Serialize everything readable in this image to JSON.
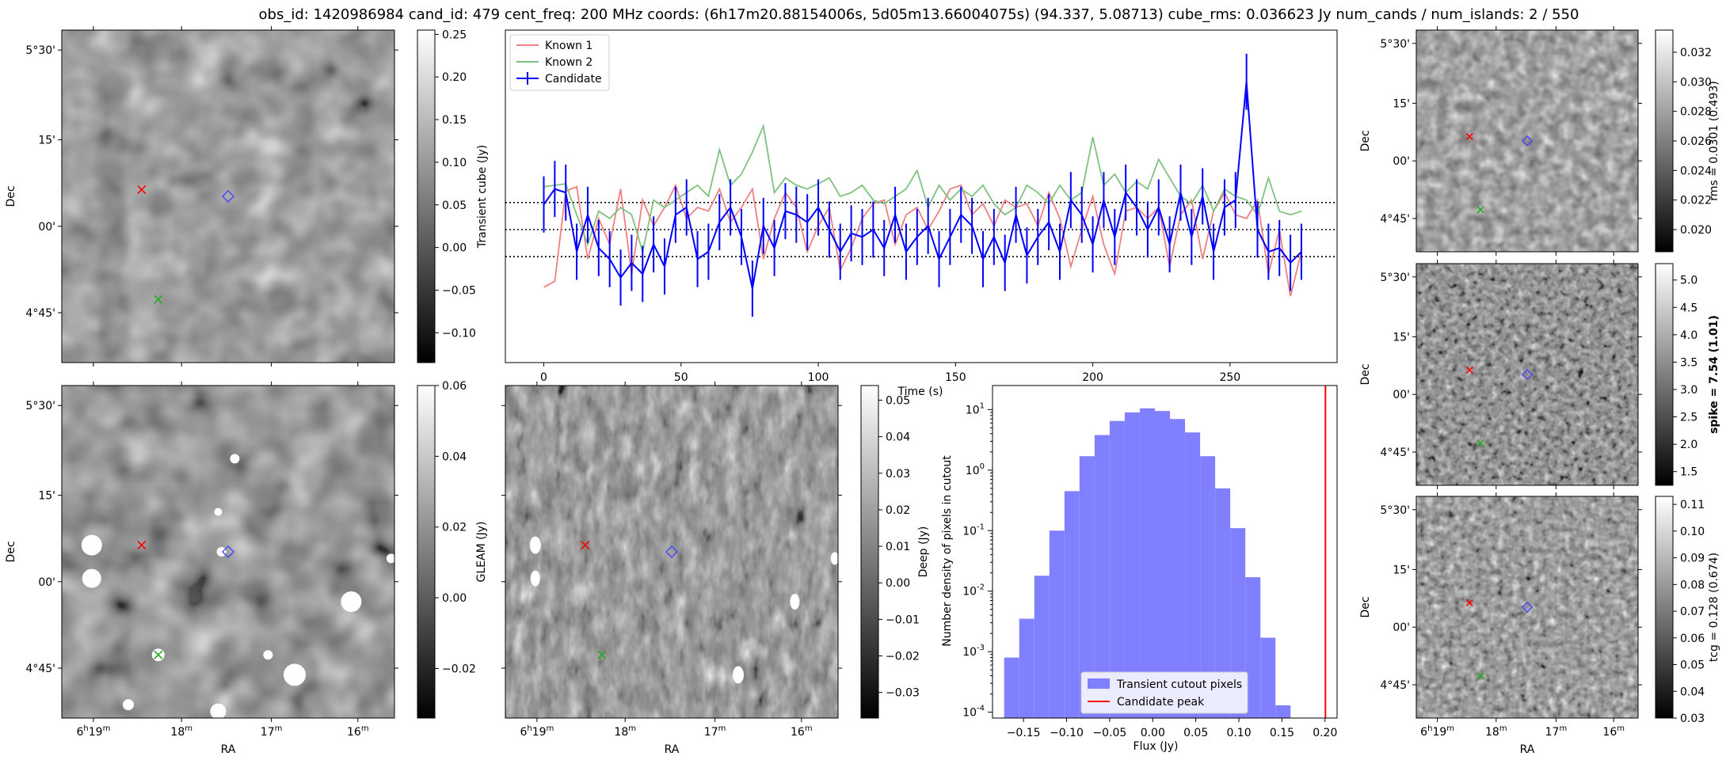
{
  "title": "obs_id: 1420986984 cand_id: 479 cent_freq: 200 MHz coords: (6h17m20.88154006s, 5d05m13.66004075s) (94.337, 5.08713) cube_rms: 0.036623 Jy num_cands / num_islands: 2 / 550",
  "axis_words": {
    "ra": "RA",
    "dec": "Dec"
  },
  "ra_ticks": [
    "6h19m",
    "18m",
    "17m",
    "16m"
  ],
  "dec_ticks": [
    "5°30'",
    "15'",
    "00'",
    "4°45'"
  ],
  "colors": {
    "known1": "#f08080",
    "known2": "#7fc17f",
    "candidate": "#0000ff",
    "hist_fill": "#8080ff",
    "peak_line": "#ff0000"
  },
  "chart_data": [
    {
      "id": "transient_image",
      "type": "heatmap",
      "colormap": "gray",
      "xlabel": "",
      "ylabel": "Dec",
      "colorbar": {
        "label": "",
        "range": [
          -0.135,
          0.255
        ],
        "ticks": [
          -0.1,
          -0.05,
          0.0,
          0.05,
          0.1,
          0.15,
          0.2,
          0.25
        ],
        "tick_labels": [
          "−0.10",
          "−0.05",
          "0.00",
          "0.05",
          "0.10",
          "0.15",
          "0.20",
          "0.25"
        ]
      }
    },
    {
      "id": "lightcurve",
      "type": "line",
      "xlabel": "Time (s)",
      "ylabel": "Transient cube (Jy)",
      "xlim": [
        -14,
        289
      ],
      "ylim": [
        -0.18,
        0.27
      ],
      "xticks": [
        0,
        50,
        100,
        150,
        200,
        250
      ],
      "hlines": [
        -0.0366,
        0.0,
        0.0366
      ],
      "legend": {
        "location": "top-left",
        "entries": [
          "Known 1",
          "Known 2",
          "Candidate"
        ]
      },
      "x": [
        0,
        4,
        8,
        12,
        16,
        20,
        24,
        28,
        32,
        36,
        40,
        44,
        48,
        52,
        56,
        60,
        64,
        68,
        72,
        76,
        80,
        84,
        88,
        92,
        96,
        100,
        104,
        108,
        112,
        116,
        120,
        124,
        128,
        132,
        136,
        140,
        144,
        148,
        152,
        156,
        160,
        164,
        168,
        172,
        176,
        180,
        184,
        188,
        192,
        196,
        200,
        204,
        208,
        212,
        216,
        220,
        224,
        228,
        232,
        236,
        240,
        244,
        248,
        252,
        256,
        260,
        264,
        268,
        272,
        276
      ],
      "series": [
        {
          "name": "Known 1",
          "values": [
            -0.078,
            -0.07,
            0.052,
            0.058,
            -0.04,
            0.015,
            -0.02,
            0.055,
            -0.06,
            0.04,
            0.005,
            0.03,
            0.06,
            0.015,
            0.03,
            0.025,
            0.055,
            0.01,
            0.03,
            0.055,
            -0.04,
            0.015,
            0.05,
            0.03,
            -0.03,
            0.005,
            0.03,
            -0.055,
            -0.025,
            0.015,
            0.035,
            0.04,
            -0.02,
            0.02,
            0.03,
            0.0,
            0.025,
            0.055,
            0.06,
            0.02,
            0.035,
            0.005,
            0.04,
            0.03,
            0.035,
            0.005,
            0.05,
            0.015,
            -0.05,
            0.0,
            0.045,
            -0.02,
            -0.06,
            0.025,
            0.03,
            0.015,
            0.03,
            -0.05,
            0.02,
            0.04,
            -0.04,
            0.025,
            0.05,
            0.02,
            0.015,
            0.04,
            -0.06,
            0.0,
            -0.09,
            -0.03
          ]
        },
        {
          "name": "Known 2",
          "values": [
            0.058,
            0.06,
            0.062,
            0.02,
            -0.02,
            0.025,
            0.015,
            0.03,
            0.02,
            -0.03,
            0.04,
            0.03,
            0.04,
            0.05,
            0.06,
            0.045,
            0.108,
            0.06,
            0.075,
            0.105,
            0.14,
            0.05,
            0.07,
            0.06,
            0.055,
            0.062,
            0.07,
            0.045,
            0.05,
            0.06,
            0.04,
            0.035,
            0.045,
            0.055,
            0.08,
            0.03,
            0.06,
            0.04,
            0.055,
            0.045,
            0.06,
            0.035,
            0.02,
            0.03,
            0.06,
            0.05,
            0.035,
            0.06,
            0.04,
            0.05,
            0.125,
            0.06,
            0.075,
            0.05,
            0.065,
            0.055,
            0.095,
            0.07,
            0.045,
            0.035,
            0.06,
            0.025,
            0.055,
            0.045,
            0.04,
            0.02,
            0.07,
            0.025,
            0.02,
            0.025
          ]
        },
        {
          "name": "Candidate",
          "values": [
            0.034,
            0.055,
            0.05,
            -0.03,
            0.02,
            -0.025,
            -0.04,
            -0.065,
            -0.045,
            -0.06,
            -0.02,
            -0.05,
            0.02,
            0.03,
            -0.04,
            -0.03,
            0.01,
            0.03,
            -0.01,
            -0.08,
            0.005,
            -0.025,
            0.025,
            0.02,
            0.01,
            0.03,
            0.0,
            -0.03,
            -0.005,
            -0.01,
            0.0,
            -0.025,
            0.02,
            -0.03,
            -0.01,
            0.005,
            -0.04,
            -0.01,
            0.02,
            0.005,
            -0.04,
            -0.01,
            -0.045,
            0.02,
            -0.035,
            -0.01,
            0.01,
            -0.03,
            0.04,
            0.02,
            -0.02,
            0.04,
            -0.01,
            0.05,
            0.03,
            0.0,
            0.03,
            -0.02,
            0.05,
            -0.01,
            0.045,
            -0.03,
            0.03,
            0.04,
            0.2,
            0.0,
            -0.03,
            -0.025,
            -0.045,
            -0.03
          ]
        }
      ],
      "candidate_error": 0.038
    },
    {
      "id": "rms_image",
      "type": "heatmap",
      "colormap": "gray",
      "xlabel": "",
      "ylabel": "Dec",
      "colorbar": {
        "label": "rms = 0.0301 (0.493)",
        "range": [
          0.0185,
          0.0335
        ],
        "ticks": [
          0.02,
          0.022,
          0.024,
          0.026,
          0.028,
          0.03,
          0.032
        ],
        "tick_labels": [
          "0.020",
          "0.022",
          "0.024",
          "0.026",
          "0.028",
          "0.030",
          "0.032"
        ]
      }
    },
    {
      "id": "spike_image",
      "type": "heatmap",
      "colormap": "gray",
      "xlabel": "",
      "ylabel": "Dec",
      "colorbar": {
        "label": "spike = 7.54 (1.01)",
        "range": [
          1.25,
          5.3
        ],
        "ticks": [
          1.5,
          2.0,
          2.5,
          3.0,
          3.5,
          4.0,
          4.5,
          5.0
        ],
        "tick_labels": [
          "1.5",
          "2.0",
          "2.5",
          "3.0",
          "3.5",
          "4.0",
          "4.5",
          "5.0"
        ]
      }
    },
    {
      "id": "gleam_image",
      "type": "heatmap",
      "colormap": "gray",
      "xlabel": "RA",
      "ylabel": "Dec",
      "colorbar": {
        "label": "GLEAM (Jy)",
        "range": [
          -0.034,
          0.06
        ],
        "ticks": [
          -0.02,
          0.0,
          0.02,
          0.04,
          0.06
        ],
        "tick_labels": [
          "−0.02",
          "0.00",
          "0.02",
          "0.04",
          "0.06"
        ]
      }
    },
    {
      "id": "deep_image",
      "type": "heatmap",
      "colormap": "gray",
      "xlabel": "RA",
      "ylabel": "",
      "colorbar": {
        "label": "Deep (Jy)",
        "range": [
          -0.037,
          0.054
        ],
        "ticks": [
          -0.03,
          -0.02,
          -0.01,
          0.0,
          0.01,
          0.02,
          0.03,
          0.04,
          0.05
        ],
        "tick_labels": [
          "−0.03",
          "−0.02",
          "−0.01",
          "0.00",
          "0.01",
          "0.02",
          "0.03",
          "0.04",
          "0.05"
        ]
      }
    },
    {
      "id": "histogram",
      "type": "bar",
      "xlabel": "Flux (Jy)",
      "ylabel": "Number density of pixels in cutout",
      "yscale": "log",
      "xlim": [
        -0.186,
        0.214
      ],
      "ylim": [
        8e-05,
        25
      ],
      "xticks": [
        -0.15,
        -0.1,
        -0.05,
        0.0,
        0.05,
        0.1,
        0.15,
        0.2
      ],
      "xtick_labels": [
        "−0.15",
        "−0.10",
        "−0.05",
        "0.00",
        "0.05",
        "0.10",
        "0.15",
        "0.20"
      ],
      "ytick_labels": [
        "10^-4",
        "10^-3",
        "10^-2",
        "10^-1",
        "10^0",
        "10^1"
      ],
      "bin_start": -0.1725,
      "bin_width": 0.0175,
      "values": [
        0.0008,
        0.0035,
        0.018,
        0.1,
        0.45,
        1.7,
        3.8,
        6.5,
        9.0,
        10.5,
        9.5,
        7.0,
        4.2,
        1.7,
        0.5,
        0.11,
        0.017,
        0.0017,
        0.00013
      ],
      "peak": 0.2005,
      "legend": {
        "location": "bottom-center",
        "entries": [
          "Transient cutout pixels",
          "Candidate peak"
        ]
      }
    },
    {
      "id": "tcg_image",
      "type": "heatmap",
      "colormap": "gray",
      "xlabel": "RA",
      "ylabel": "Dec",
      "colorbar": {
        "label": "tcg = 0.128 (0.674)",
        "range": [
          0.03,
          0.113
        ],
        "ticks": [
          0.03,
          0.04,
          0.05,
          0.06,
          0.07,
          0.08,
          0.09,
          0.1,
          0.11
        ],
        "tick_labels": [
          "0.03",
          "0.04",
          "0.05",
          "0.06",
          "0.07",
          "0.08",
          "0.09",
          "0.10",
          "0.11"
        ]
      }
    }
  ]
}
